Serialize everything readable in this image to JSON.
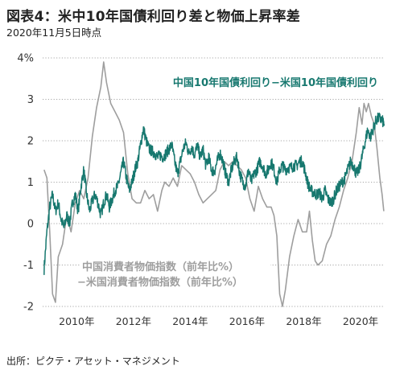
{
  "title": "図表4：米中10年国債利回り差と物価上昇率差",
  "subtitle": "2020年11月5日時点",
  "source": "出所：ピクテ・アセット・マネジメント",
  "chart_data": {
    "type": "line",
    "x_unit": "year",
    "xlim": [
      2008.8,
      2020.85
    ],
    "ylim": [
      -2,
      4
    ],
    "y_ticks": [
      4,
      3,
      2,
      1,
      0,
      -1,
      -2
    ],
    "y_tick_labels": [
      "4%",
      "3",
      "2",
      "1",
      "0",
      "-1",
      "-2"
    ],
    "x_ticks": [
      2010,
      2012,
      2014,
      2016,
      2018,
      2020
    ],
    "x_tick_labels": [
      "2010年",
      "2012年",
      "2014年",
      "2016年",
      "2018年",
      "2020年"
    ],
    "grid": true,
    "colors": {
      "bond_spread": "#17786f",
      "cpi_spread": "#9e9e9e",
      "grid": "#8a8a8a"
    },
    "series": [
      {
        "key": "bond_spread",
        "label_lines": [
          "中国10年国債利回り−米国10年国債利回り"
        ],
        "points": [
          [
            2008.85,
            -1.1
          ],
          [
            2008.95,
            -0.2
          ],
          [
            2009.05,
            0.4
          ],
          [
            2009.15,
            0.7
          ],
          [
            2009.25,
            0.3
          ],
          [
            2009.35,
            0.5
          ],
          [
            2009.45,
            0.1
          ],
          [
            2009.55,
            -0.1
          ],
          [
            2009.65,
            0.2
          ],
          [
            2009.75,
            0.0
          ],
          [
            2009.85,
            0.5
          ],
          [
            2009.95,
            0.7
          ],
          [
            2010.05,
            0.3
          ],
          [
            2010.15,
            0.9
          ],
          [
            2010.25,
            1.3
          ],
          [
            2010.35,
            0.7
          ],
          [
            2010.45,
            0.3
          ],
          [
            2010.55,
            0.55
          ],
          [
            2010.65,
            0.7
          ],
          [
            2010.75,
            0.5
          ],
          [
            2010.85,
            0.2
          ],
          [
            2010.95,
            0.5
          ],
          [
            2011.05,
            0.7
          ],
          [
            2011.15,
            0.4
          ],
          [
            2011.25,
            0.6
          ],
          [
            2011.35,
            0.8
          ],
          [
            2011.45,
            0.9
          ],
          [
            2011.55,
            1.2
          ],
          [
            2011.65,
            1.5
          ],
          [
            2011.75,
            1.1
          ],
          [
            2011.85,
            0.8
          ],
          [
            2011.95,
            1.0
          ],
          [
            2012.05,
            1.3
          ],
          [
            2012.15,
            1.5
          ],
          [
            2012.25,
            1.9
          ],
          [
            2012.35,
            2.3
          ],
          [
            2012.45,
            2.0
          ],
          [
            2012.55,
            1.8
          ],
          [
            2012.65,
            1.75
          ],
          [
            2012.75,
            1.7
          ],
          [
            2012.85,
            1.6
          ],
          [
            2012.95,
            1.65
          ],
          [
            2013.05,
            1.6
          ],
          [
            2013.15,
            1.7
          ],
          [
            2013.25,
            1.8
          ],
          [
            2013.35,
            1.9
          ],
          [
            2013.45,
            1.5
          ],
          [
            2013.55,
            1.2
          ],
          [
            2013.65,
            1.5
          ],
          [
            2013.75,
            1.8
          ],
          [
            2013.85,
            1.95
          ],
          [
            2013.95,
            1.7
          ],
          [
            2014.05,
            1.85
          ],
          [
            2014.15,
            1.65
          ],
          [
            2014.25,
            1.9
          ],
          [
            2014.35,
            1.6
          ],
          [
            2014.45,
            1.8
          ],
          [
            2014.55,
            1.4
          ],
          [
            2014.65,
            1.6
          ],
          [
            2014.75,
            1.3
          ],
          [
            2014.85,
            1.25
          ],
          [
            2014.95,
            1.5
          ],
          [
            2015.05,
            1.7
          ],
          [
            2015.15,
            1.5
          ],
          [
            2015.25,
            1.2
          ],
          [
            2015.35,
            1.0
          ],
          [
            2015.45,
            1.3
          ],
          [
            2015.55,
            1.5
          ],
          [
            2015.65,
            1.6
          ],
          [
            2015.75,
            1.2
          ],
          [
            2015.85,
            1.0
          ],
          [
            2015.95,
            0.9
          ],
          [
            2016.05,
            1.3
          ],
          [
            2016.15,
            1.0
          ],
          [
            2016.25,
            1.2
          ],
          [
            2016.35,
            1.3
          ],
          [
            2016.45,
            1.5
          ],
          [
            2016.55,
            1.4
          ],
          [
            2016.65,
            1.2
          ],
          [
            2016.75,
            1.3
          ],
          [
            2016.85,
            1.5
          ],
          [
            2016.95,
            1.3
          ],
          [
            2017.05,
            1.0
          ],
          [
            2017.15,
            1.3
          ],
          [
            2017.25,
            1.4
          ],
          [
            2017.35,
            1.3
          ],
          [
            2017.45,
            1.35
          ],
          [
            2017.55,
            1.35
          ],
          [
            2017.65,
            1.4
          ],
          [
            2017.75,
            1.4
          ],
          [
            2017.85,
            1.5
          ],
          [
            2017.95,
            1.5
          ],
          [
            2018.05,
            1.25
          ],
          [
            2018.15,
            0.95
          ],
          [
            2018.25,
            0.8
          ],
          [
            2018.35,
            0.75
          ],
          [
            2018.45,
            0.7
          ],
          [
            2018.55,
            0.75
          ],
          [
            2018.65,
            0.6
          ],
          [
            2018.75,
            0.8
          ],
          [
            2018.85,
            0.6
          ],
          [
            2018.95,
            0.5
          ],
          [
            2019.05,
            0.6
          ],
          [
            2019.15,
            0.8
          ],
          [
            2019.25,
            0.9
          ],
          [
            2019.35,
            1.0
          ],
          [
            2019.45,
            1.1
          ],
          [
            2019.55,
            1.3
          ],
          [
            2019.65,
            1.5
          ],
          [
            2019.75,
            1.4
          ],
          [
            2019.85,
            1.2
          ],
          [
            2019.95,
            1.3
          ],
          [
            2020.05,
            1.6
          ],
          [
            2020.15,
            1.95
          ],
          [
            2020.25,
            2.25
          ],
          [
            2020.35,
            2.1
          ],
          [
            2020.45,
            2.3
          ],
          [
            2020.55,
            2.5
          ],
          [
            2020.65,
            2.55
          ],
          [
            2020.75,
            2.5
          ],
          [
            2020.84,
            2.4
          ]
        ]
      },
      {
        "key": "cpi_spread",
        "label_lines": [
          "中国消費者物価指数（前年比%）",
          "−米国消費者物価指数（前年比%）"
        ],
        "points": [
          [
            2008.85,
            1.3
          ],
          [
            2008.95,
            1.1
          ],
          [
            2009.05,
            -0.2
          ],
          [
            2009.15,
            -1.7
          ],
          [
            2009.25,
            -1.9
          ],
          [
            2009.35,
            -0.8
          ],
          [
            2009.5,
            -0.5
          ],
          [
            2009.65,
            0.2
          ],
          [
            2009.8,
            -0.2
          ],
          [
            2009.95,
            0.5
          ],
          [
            2010.1,
            0.8
          ],
          [
            2010.25,
            0.6
          ],
          [
            2010.4,
            1.1
          ],
          [
            2010.55,
            2.1
          ],
          [
            2010.7,
            2.8
          ],
          [
            2010.85,
            3.3
          ],
          [
            2010.95,
            3.9
          ],
          [
            2011.05,
            3.4
          ],
          [
            2011.2,
            2.9
          ],
          [
            2011.35,
            2.7
          ],
          [
            2011.5,
            2.5
          ],
          [
            2011.65,
            2.2
          ],
          [
            2011.8,
            1.2
          ],
          [
            2011.95,
            0.6
          ],
          [
            2012.1,
            0.5
          ],
          [
            2012.25,
            0.5
          ],
          [
            2012.4,
            0.8
          ],
          [
            2012.55,
            0.6
          ],
          [
            2012.7,
            0.7
          ],
          [
            2012.85,
            0.3
          ],
          [
            2013.0,
            0.8
          ],
          [
            2013.1,
            1.0
          ],
          [
            2013.25,
            0.9
          ],
          [
            2013.4,
            1.1
          ],
          [
            2013.55,
            0.9
          ],
          [
            2013.7,
            1.4
          ],
          [
            2013.85,
            1.3
          ],
          [
            2014.0,
            1.2
          ],
          [
            2014.15,
            1.0
          ],
          [
            2014.3,
            0.7
          ],
          [
            2014.45,
            0.5
          ],
          [
            2014.6,
            0.6
          ],
          [
            2014.75,
            0.7
          ],
          [
            2014.9,
            0.8
          ],
          [
            2015.05,
            1.3
          ],
          [
            2015.2,
            1.5
          ],
          [
            2015.35,
            1.4
          ],
          [
            2015.5,
            1.5
          ],
          [
            2015.65,
            1.4
          ],
          [
            2015.8,
            1.3
          ],
          [
            2015.95,
            1.1
          ],
          [
            2016.1,
            0.6
          ],
          [
            2016.25,
            0.3
          ],
          [
            2016.4,
            0.9
          ],
          [
            2016.55,
            0.6
          ],
          [
            2016.7,
            0.4
          ],
          [
            2016.85,
            0.4
          ],
          [
            2016.95,
            0.2
          ],
          [
            2017.05,
            -0.3
          ],
          [
            2017.15,
            -1.7
          ],
          [
            2017.25,
            -2.0
          ],
          [
            2017.35,
            -1.6
          ],
          [
            2017.5,
            -0.8
          ],
          [
            2017.65,
            -0.3
          ],
          [
            2017.8,
            0.1
          ],
          [
            2017.95,
            -0.2
          ],
          [
            2018.1,
            -0.2
          ],
          [
            2018.2,
            0.3
          ],
          [
            2018.3,
            -0.4
          ],
          [
            2018.4,
            -0.9
          ],
          [
            2018.5,
            -1.0
          ],
          [
            2018.65,
            -0.9
          ],
          [
            2018.8,
            -0.5
          ],
          [
            2018.95,
            -0.3
          ],
          [
            2019.1,
            0.1
          ],
          [
            2019.25,
            0.4
          ],
          [
            2019.4,
            0.8
          ],
          [
            2019.55,
            1.1
          ],
          [
            2019.7,
            1.5
          ],
          [
            2019.85,
            2.2
          ],
          [
            2019.95,
            2.8
          ],
          [
            2020.05,
            2.4
          ],
          [
            2020.12,
            2.9
          ],
          [
            2020.2,
            2.7
          ],
          [
            2020.28,
            2.9
          ],
          [
            2020.38,
            2.6
          ],
          [
            2020.48,
            2.4
          ],
          [
            2020.58,
            1.8
          ],
          [
            2020.68,
            1.1
          ],
          [
            2020.76,
            0.7
          ],
          [
            2020.82,
            0.3
          ]
        ]
      }
    ]
  }
}
